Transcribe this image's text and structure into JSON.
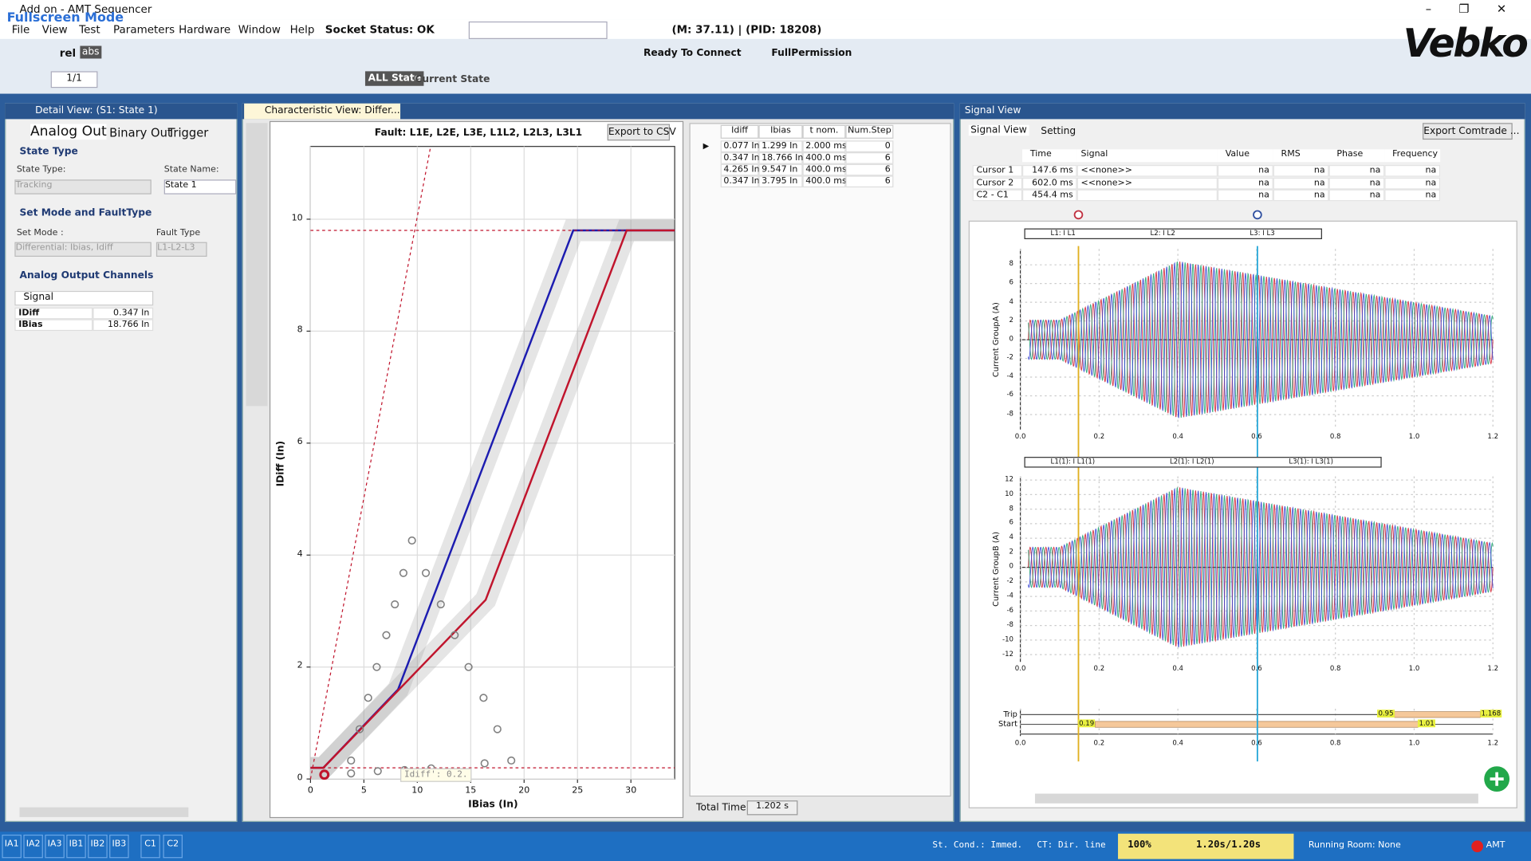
{
  "window": {
    "title": "Add on - AMT Sequencer",
    "mode_badge": "Fullscreen Mode",
    "process_info": "(M: 37.11) | (PID: 18208)",
    "logo": "Vebko"
  },
  "menu": [
    "File",
    "View",
    "Test",
    "Parameters",
    "Hardware",
    "Window",
    "Help",
    "Socket Status: OK"
  ],
  "toolbar": {
    "rel": "rel",
    "abs": "abs",
    "connection": "Ready To Connect",
    "permission": "FullPermission",
    "page": "1/1",
    "all_state": "ALL State",
    "current_state": "Current State"
  },
  "detail_view": {
    "title": "Detail View: (S1: State 1)",
    "tabs": [
      "Analog Out",
      "Binary Out",
      "Trigger"
    ],
    "state_type": {
      "section": "State Type",
      "type_label": "State Type:",
      "type_value": "Tracking",
      "name_label": "State Name:",
      "name_value": "State 1"
    },
    "mode": {
      "section": "Set Mode and FaultType",
      "mode_label": "Set Mode :",
      "mode_value": "Differential: Ibias, Idiff",
      "fault_label": "Fault Type",
      "fault_value": "L1-L2-L3"
    },
    "channels": {
      "section": "Analog Output Channels",
      "header": "Signal",
      "rows": [
        [
          "IDiff",
          "0.347 In"
        ],
        [
          "IBias",
          "18.766 In"
        ]
      ]
    }
  },
  "characteristic_view": {
    "tab": "Characteristic View: Differ...",
    "export": "Export to CSV",
    "tooltip": "Idiff': 0.2.",
    "total_time_label": "Total Time:",
    "total_time": "1.202 s",
    "table": {
      "columns": [
        "Idiff",
        "Ibias",
        "t nom.",
        "Num.Step"
      ],
      "rows": [
        [
          "0.077 In",
          "1.299 In",
          "2.000 ms",
          "0"
        ],
        [
          "0.347 In",
          "18.766 In",
          "400.0 ms",
          "6"
        ],
        [
          "4.265 In",
          "9.547 In",
          "400.0 ms",
          "6"
        ],
        [
          "0.347 In",
          "3.795 In",
          "400.0 ms",
          "6"
        ]
      ]
    },
    "chart_data": {
      "type": "line",
      "title": "Fault: L1E, L2E, L3E, L1L2, L2L3, L3L1",
      "x_label": "IBias (In)",
      "y_label": "IDiff (In)",
      "xlim": [
        0,
        34.1
      ],
      "ylim": [
        0,
        11.3
      ],
      "xticks": [
        0,
        5,
        10,
        15,
        20,
        25,
        30
      ],
      "yticks": [
        0,
        2,
        4,
        6,
        8,
        10
      ],
      "grid": true,
      "series": [
        {
          "color": "#1c1cb0",
          "x": [
            0,
            1.2,
            8.2,
            24.6,
            34.1
          ],
          "values": [
            0.2,
            0.2,
            1.6,
            9.8,
            9.8
          ]
        },
        {
          "color": "#c0142c",
          "x": [
            0,
            1.2,
            16.4,
            29.6,
            34.1
          ],
          "values": [
            0.2,
            0.2,
            3.2,
            9.8,
            9.8
          ]
        },
        {
          "color": "#c0142c",
          "style": "dashed",
          "x": [
            0,
            11.25,
            null,
            0,
            34.1,
            null,
            0,
            34.1
          ],
          "values": [
            0,
            11.3,
            null,
            9.8,
            9.8,
            null,
            0.2,
            0.2
          ]
        }
      ],
      "points": {
        "color": "#808080",
        "x": [
          9.5,
          8.7,
          10.8,
          7.9,
          12.2,
          7.1,
          13.5,
          6.2,
          14.8,
          5.4,
          16.2,
          4.6,
          17.5,
          3.8,
          18.8,
          3.8,
          6.3,
          8.8,
          11.3,
          16.3
        ],
        "values": [
          4.26,
          3.68,
          3.68,
          3.12,
          3.12,
          2.57,
          2.57,
          2.0,
          2.0,
          1.45,
          1.45,
          0.89,
          0.89,
          0.33,
          0.33,
          0.1,
          0.14,
          0.16,
          0.19,
          0.28
        ]
      },
      "selected_point": {
        "color": "#c0142c",
        "x": 1.299,
        "value": 0.077
      }
    }
  },
  "signal_view": {
    "title": "Signal View",
    "tabs": [
      "Signal View",
      "Setting"
    ],
    "export": "Export Comtrade ...",
    "table": {
      "columns": [
        "Time",
        "Signal",
        "Value",
        "RMS",
        "Phase",
        "Frequency"
      ],
      "rows": [
        [
          "Cursor 1",
          "147.6 ms",
          "<<none>>",
          "na",
          "na",
          "na",
          "na"
        ],
        [
          "Cursor 2",
          "602.0 ms",
          "<<none>>",
          "na",
          "na",
          "na",
          "na"
        ],
        [
          "C2 - C1",
          "454.4 ms",
          "",
          "na",
          "na",
          "na",
          "na"
        ]
      ]
    },
    "cursors": [
      {
        "value": 0.1476,
        "color": "#e0b020"
      },
      {
        "value": 0.602,
        "color": "#28a8d8"
      }
    ],
    "plots": [
      {
        "y_label": "Current GroupA (A)",
        "legend": [
          {
            "name": "L1: I L1",
            "color": "#d02030"
          },
          {
            "name": "L2: I L2",
            "color": "#20a070"
          },
          {
            "name": "L3: I L3",
            "color": "#3040d0"
          }
        ],
        "xlim": [
          0,
          1.2
        ],
        "ylim": [
          -9.6,
          9.7
        ],
        "xticks": [
          {
            "value": 0,
            "label": "0.0"
          },
          0.2,
          0.4,
          0.6,
          0.8,
          {
            "value": 1,
            "label": "1.0"
          },
          1.2
        ],
        "yticks": [
          -8,
          -6,
          -4,
          -2,
          0,
          2,
          4,
          6,
          8
        ]
      },
      {
        "y_label": "Current GroupB (A)",
        "legend": [
          {
            "name": "L1(1): I L1(1)",
            "color": "#d02030"
          },
          {
            "name": "L2(1): I L2(1)",
            "color": "#20a070"
          },
          {
            "name": "L3(1): I L3(1)",
            "color": "#3040d0"
          }
        ],
        "xlim": [
          0,
          1.2
        ],
        "ylim": [
          -13,
          12.5
        ],
        "xticks": [
          {
            "value": 0,
            "label": "0.0"
          },
          0.2,
          0.4,
          0.6,
          0.8,
          {
            "value": 1,
            "label": "1.0"
          },
          1.2
        ],
        "yticks": [
          -12,
          -10,
          -8,
          -6,
          -4,
          -2,
          0,
          2,
          4,
          6,
          8,
          10,
          12
        ]
      }
    ],
    "binary_plot": {
      "xlim": [
        0,
        1.2
      ],
      "xticks": [
        {
          "value": 0,
          "label": "0.0"
        },
        0.2,
        0.4,
        0.6,
        0.8,
        {
          "value": 1,
          "label": "1.0"
        },
        1.2
      ],
      "rows": [
        {
          "name": "Trip",
          "color": "#f5c89a",
          "start": 0.95,
          "end": 1.168
        },
        {
          "name": "Start",
          "color": "#f5c89a",
          "start": 0.19,
          "end": 1.01
        }
      ]
    }
  },
  "status_bar": {
    "channels": [
      "IA1",
      "IA2",
      "IA3",
      "IB1",
      "IB2",
      "IB3",
      "C1",
      "C2"
    ],
    "condition": "St. Cond.: Immed.",
    "ct": "CT: Dir. line",
    "speed": "100%",
    "time": "1.20s/1.20s",
    "room": "Running Room: None",
    "device": "AMT"
  }
}
